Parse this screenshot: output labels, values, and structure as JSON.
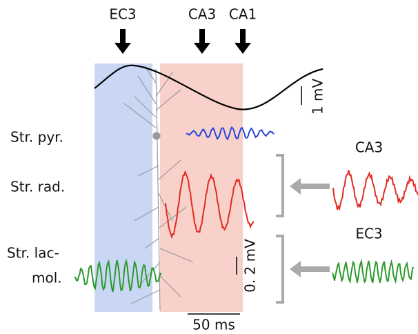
{
  "arrows": [
    "EC3",
    "CA3",
    "CA1"
  ],
  "scale_bars": {
    "top": "1 mV",
    "middle": "0. 2 mV",
    "time": "50 ms"
  },
  "layers": [
    "Str. pyr.",
    "Str. rad.",
    "Str. lac-",
    "mol."
  ],
  "insets": [
    "CA3",
    "EC3"
  ]
}
